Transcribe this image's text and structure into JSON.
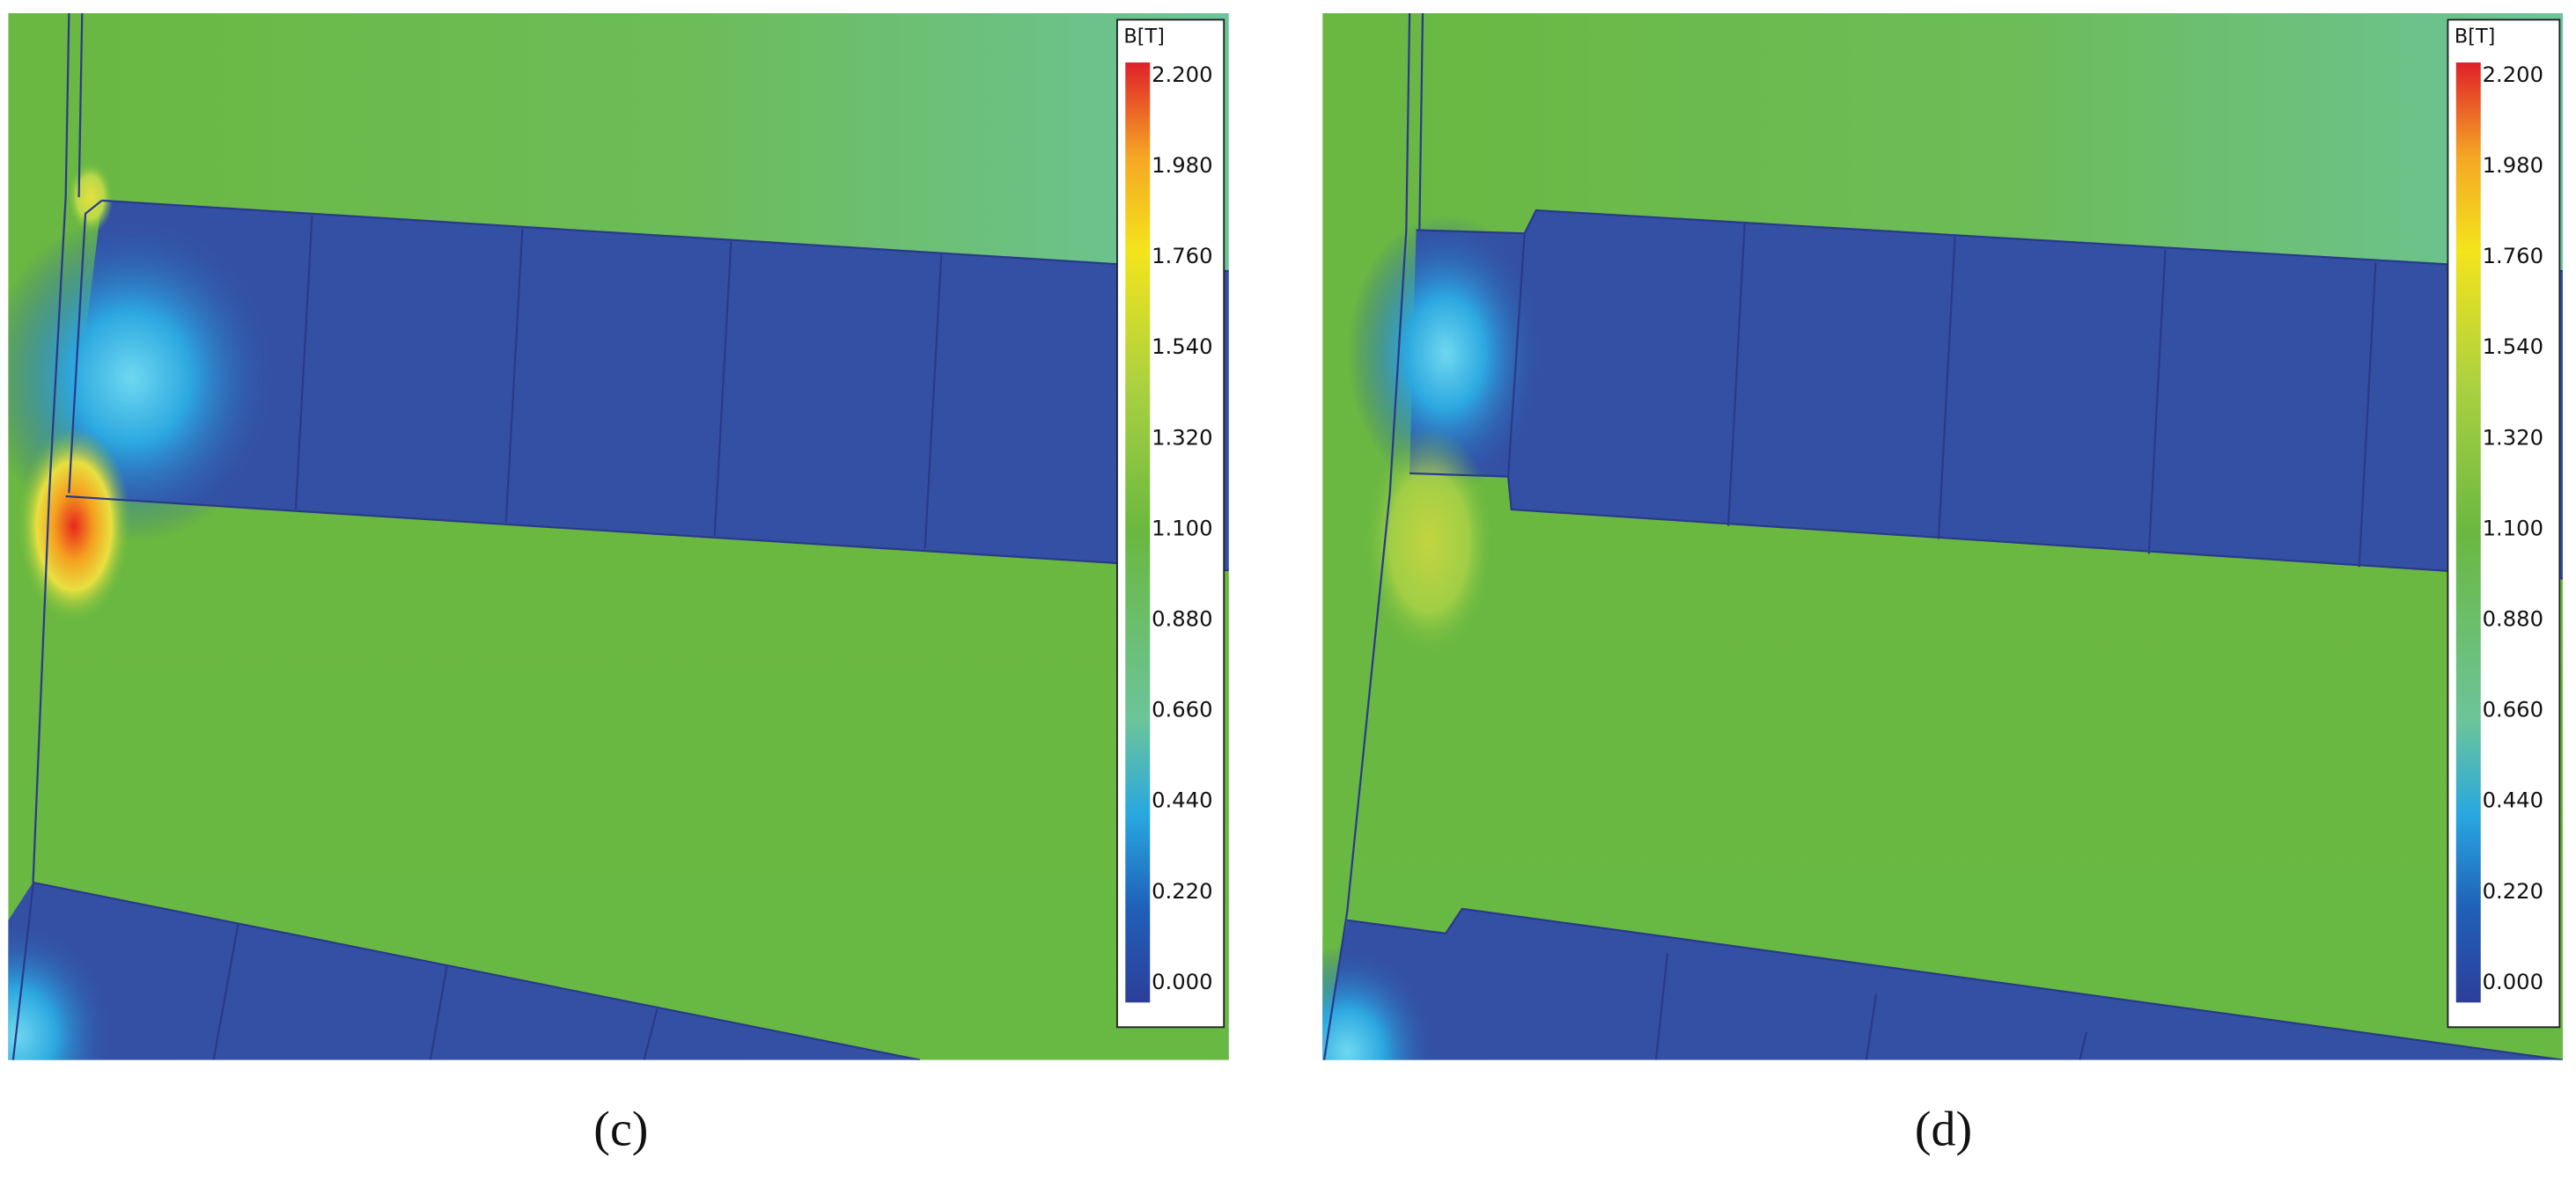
{
  "panels": [
    {
      "caption": "(c)",
      "legend": {
        "title": "B[T]",
        "ticks": [
          "2.200",
          "1.980",
          "1.760",
          "1.540",
          "1.320",
          "1.100",
          "0.880",
          "0.660",
          "0.440",
          "0.220",
          "0.000"
        ]
      }
    },
    {
      "caption": "(d)",
      "legend": {
        "title": "B[T]",
        "ticks": [
          "2.200",
          "1.980",
          "1.760",
          "1.540",
          "1.320",
          "1.100",
          "0.880",
          "0.660",
          "0.440",
          "0.220",
          "0.000"
        ]
      }
    }
  ]
}
